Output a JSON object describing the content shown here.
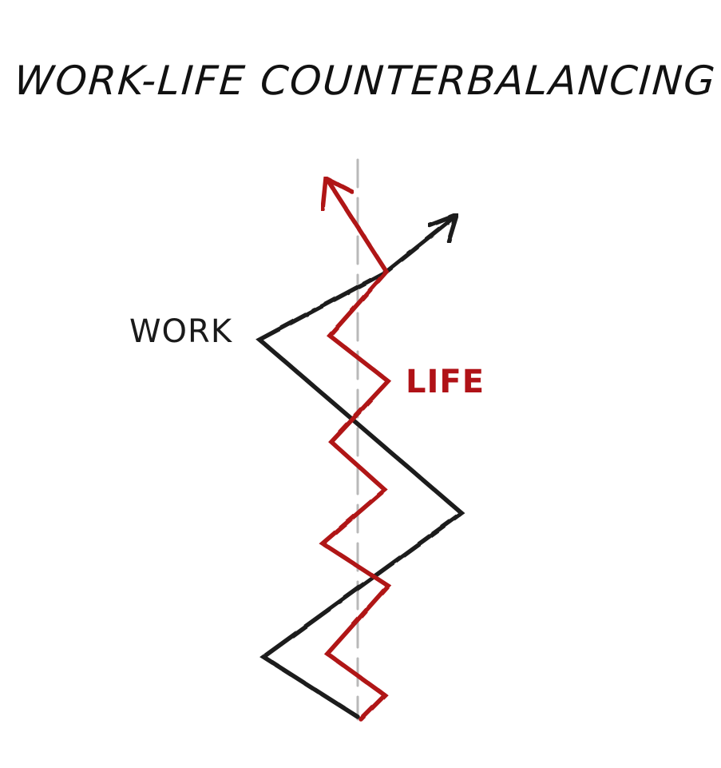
{
  "title": "WORK-LIFE COUNTERBALANCING",
  "labels": {
    "work": "WORK",
    "life": "LIFE"
  },
  "colors": {
    "work": "#1a1a1a",
    "life": "#b01217",
    "centerline": "#b9b9b9",
    "background": "#ffffff"
  }
}
